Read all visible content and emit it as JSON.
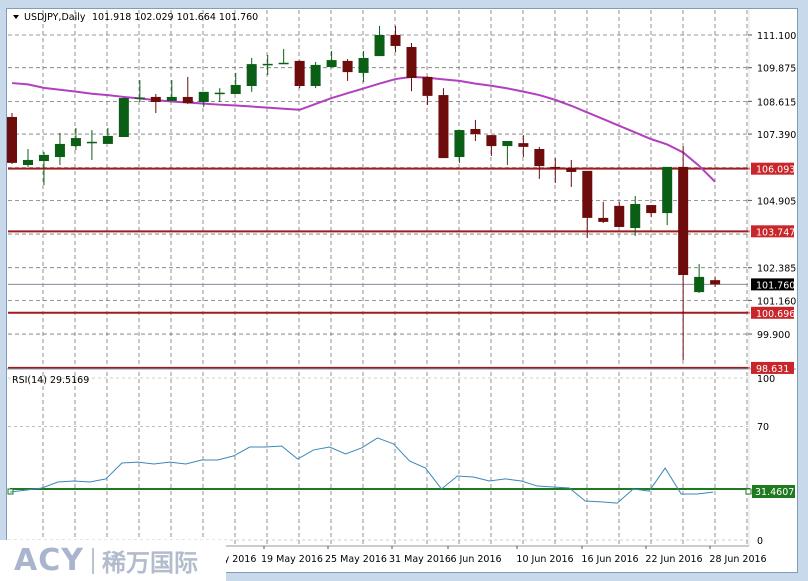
{
  "header": {
    "symbol_timeframe": "USDJPY,Daily",
    "ohlc": "101.918 102.029 101.664 101.760"
  },
  "colors": {
    "bull": "#0b5e16",
    "bear": "#6e0b0b",
    "ma": "#b23fc0",
    "level": "#a01c1c",
    "rsi": "#3b88b8",
    "rsi_level": "#1f7a1f",
    "current": "#000000"
  },
  "price_axis": {
    "ticks": [
      "111.100",
      "109.875",
      "108.615",
      "107.390",
      "104.905",
      "102.385",
      "101.160",
      "99.900"
    ],
    "current_price": "101.760",
    "levels": [
      "106.093",
      "103.747",
      "100.696",
      "98.631"
    ]
  },
  "rsi": {
    "title": "RSI(14) 29.5169",
    "ticks": [
      "100",
      "70",
      "0"
    ],
    "level_label": "31.4607",
    "values": [
      29.6,
      30.8,
      32.1,
      35.8,
      36.4,
      35.8,
      37.7,
      47.5,
      48.1,
      46.9,
      48.1,
      46.9,
      49.4,
      49.4,
      51.9,
      57.4,
      57.4,
      58.0,
      50.0,
      55.6,
      57.4,
      53.1,
      56.8,
      63.0,
      59.3,
      48.8,
      44.4,
      31.5,
      39.5,
      38.9,
      36.4,
      37.7,
      36.4,
      33.3,
      32.7,
      32.1,
      24.1,
      23.5,
      22.8,
      31.5,
      30.2,
      44.4,
      28.4,
      28.4,
      29.5169
    ]
  },
  "date_axis": [
    "y 2016",
    "19 May 2016",
    "25 May 2016",
    "31 May 2016",
    "6 Jun 2016",
    "10 Jun 2016",
    "16 Jun 2016",
    "22 Jun 2016",
    "28 Jun 2016"
  ],
  "logo": {
    "latin": "ACY",
    "chinese": "稀万国际"
  },
  "chart_data": {
    "type": "candlestick",
    "symbol": "USDJPY",
    "timeframe": "Daily",
    "ylim": [
      98.4,
      111.6
    ],
    "candles": [
      [
        108.03,
        108.18,
        106.27,
        106.31
      ],
      [
        106.23,
        106.83,
        106.16,
        106.42
      ],
      [
        106.38,
        106.72,
        105.48,
        106.61
      ],
      [
        106.53,
        107.43,
        106.23,
        107.02
      ],
      [
        106.94,
        107.62,
        106.79,
        107.24
      ],
      [
        107.09,
        107.54,
        106.42,
        107.1
      ],
      [
        107.02,
        107.62,
        107.02,
        107.32
      ],
      [
        107.28,
        108.76,
        107.28,
        108.74
      ],
      [
        108.74,
        109.41,
        108.59,
        108.76
      ],
      [
        108.78,
        108.89,
        108.18,
        108.59
      ],
      [
        108.63,
        109.41,
        108.63,
        108.78
      ],
      [
        108.78,
        109.53,
        108.52,
        108.55
      ],
      [
        108.59,
        108.97,
        108.4,
        108.97
      ],
      [
        108.93,
        109.11,
        108.59,
        108.94
      ],
      [
        108.89,
        109.68,
        108.89,
        109.23
      ],
      [
        109.19,
        110.24,
        108.97,
        110.01
      ],
      [
        110.01,
        110.35,
        109.6,
        110.02
      ],
      [
        110.05,
        110.58,
        110.05,
        110.06
      ],
      [
        110.13,
        110.15,
        109.11,
        109.19
      ],
      [
        109.19,
        110.09,
        109.11,
        109.98
      ],
      [
        109.9,
        110.5,
        109.9,
        110.16
      ],
      [
        110.13,
        110.2,
        109.38,
        109.71
      ],
      [
        109.68,
        110.5,
        109.34,
        110.24
      ],
      [
        110.31,
        111.44,
        110.31,
        111.1
      ],
      [
        111.1,
        111.44,
        110.46,
        110.69
      ],
      [
        110.65,
        110.8,
        109.0,
        109.49
      ],
      [
        109.53,
        109.55,
        108.48,
        108.82
      ],
      [
        108.85,
        109.11,
        106.49,
        106.49
      ],
      [
        106.53,
        107.54,
        106.31,
        107.54
      ],
      [
        107.58,
        107.92,
        107.13,
        107.39
      ],
      [
        107.35,
        107.35,
        106.57,
        106.94
      ],
      [
        106.94,
        107.13,
        106.23,
        107.13
      ],
      [
        107.05,
        107.35,
        106.53,
        106.91
      ],
      [
        106.83,
        106.91,
        105.71,
        106.19
      ],
      [
        106.16,
        106.49,
        105.56,
        106.12
      ],
      [
        106.12,
        106.42,
        105.41,
        105.97
      ],
      [
        106.01,
        106.01,
        103.5,
        104.25
      ],
      [
        104.25,
        104.85,
        104.06,
        104.1
      ],
      [
        104.7,
        104.85,
        103.91,
        103.91
      ],
      [
        103.87,
        105.07,
        103.57,
        104.77
      ],
      [
        104.73,
        104.73,
        104.28,
        104.43
      ],
      [
        104.43,
        106.16,
        103.98,
        106.16
      ],
      [
        106.16,
        106.94,
        98.93,
        102.11
      ],
      [
        101.47,
        102.52,
        101.44,
        102.04
      ],
      [
        101.918,
        102.029,
        101.664,
        101.76
      ]
    ],
    "ma": [
      109.3,
      109.25,
      109.12,
      109.05,
      108.98,
      108.9,
      108.85,
      108.78,
      108.72,
      108.66,
      108.61,
      108.57,
      108.53,
      108.49,
      108.46,
      108.42,
      108.38,
      108.34,
      108.3,
      108.52,
      108.74,
      108.92,
      109.1,
      109.28,
      109.45,
      109.53,
      109.5,
      109.44,
      109.38,
      109.28,
      109.2,
      109.1,
      108.98,
      108.85,
      108.67,
      108.45,
      108.2,
      107.95,
      107.7,
      107.45,
      107.2,
      107.0,
      106.7,
      106.2,
      105.6
    ]
  }
}
